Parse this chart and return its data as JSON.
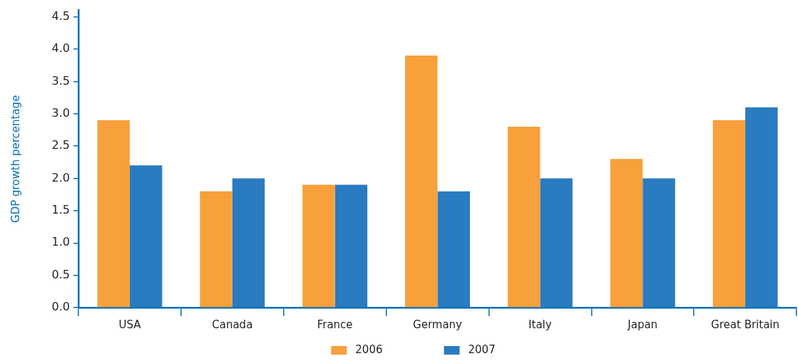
{
  "chart_data": {
    "type": "bar",
    "ylabel": "GDP growth percentage",
    "categories": [
      "USA",
      "Canada",
      "France",
      "Germany",
      "Italy",
      "Japan",
      "Great Britain"
    ],
    "series": [
      {
        "name": "2006",
        "color": "#f7a03c",
        "values": [
          2.9,
          1.8,
          1.9,
          3.9,
          2.8,
          2.3,
          2.9
        ]
      },
      {
        "name": "2007",
        "color": "#2a7bc0",
        "values": [
          2.2,
          2.0,
          1.9,
          1.8,
          2.0,
          2.0,
          3.1
        ]
      }
    ],
    "ylim": [
      0,
      4.6
    ],
    "yticks": [
      {
        "value": 0,
        "label": "0.0"
      },
      0.5,
      {
        "value": 1,
        "label": "1.0"
      },
      1.5,
      {
        "value": 2,
        "label": "2.0"
      },
      2.5,
      {
        "value": 3,
        "label": "3.0"
      },
      3.5,
      {
        "value": 4,
        "label": "4.0"
      },
      4.5
    ],
    "legend": "bottom"
  }
}
